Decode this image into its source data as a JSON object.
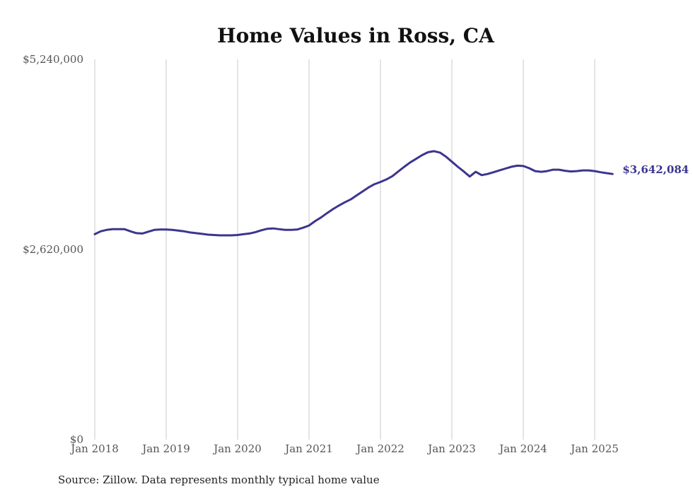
{
  "chart_data": {
    "type": "line",
    "title": "Home Values in Ross, CA",
    "source": "Source: Zillow. Data represents monthly typical home value",
    "ylim": [
      0,
      5240000
    ],
    "yticks": [
      {
        "value": 0,
        "label": "$0"
      },
      {
        "value": 2620000,
        "label": "$2,620,000"
      },
      {
        "value": 5240000,
        "label": "$5,240,000"
      }
    ],
    "xticks": [
      {
        "value": "2018-01",
        "label": "Jan 2018"
      },
      {
        "value": "2019-01",
        "label": "Jan 2019"
      },
      {
        "value": "2020-01",
        "label": "Jan 2020"
      },
      {
        "value": "2021-01",
        "label": "Jan 2021"
      },
      {
        "value": "2022-01",
        "label": "Jan 2022"
      },
      {
        "value": "2023-01",
        "label": "Jan 2023"
      },
      {
        "value": "2024-01",
        "label": "Jan 2024"
      },
      {
        "value": "2025-01",
        "label": "Jan 2025"
      }
    ],
    "grid_x": true,
    "grid_y": false,
    "line_color": "#3b3590",
    "end_label": "$3,642,084",
    "series": [
      {
        "x": [
          "2018-01",
          "2018-02",
          "2018-03",
          "2018-04",
          "2018-05",
          "2018-06",
          "2018-07",
          "2018-08",
          "2018-09",
          "2018-10",
          "2018-11",
          "2018-12",
          "2019-01",
          "2019-02",
          "2019-03",
          "2019-04",
          "2019-05",
          "2019-06",
          "2019-07",
          "2019-08",
          "2019-09",
          "2019-10",
          "2019-11",
          "2019-12",
          "2020-01",
          "2020-02",
          "2020-03",
          "2020-04",
          "2020-05",
          "2020-06",
          "2020-07",
          "2020-08",
          "2020-09",
          "2020-10",
          "2020-11",
          "2020-12",
          "2021-01",
          "2021-02",
          "2021-03",
          "2021-04",
          "2021-05",
          "2021-06",
          "2021-07",
          "2021-08",
          "2021-09",
          "2021-10",
          "2021-11",
          "2021-12",
          "2022-01",
          "2022-02",
          "2022-03",
          "2022-04",
          "2022-05",
          "2022-06",
          "2022-07",
          "2022-08",
          "2022-09",
          "2022-10",
          "2022-11",
          "2022-12",
          "2023-01",
          "2023-02",
          "2023-03",
          "2023-04",
          "2023-05",
          "2023-06",
          "2023-07",
          "2023-08",
          "2023-09",
          "2023-10",
          "2023-11",
          "2023-12",
          "2024-01",
          "2024-02",
          "2024-03",
          "2024-04",
          "2024-05",
          "2024-06",
          "2024-07",
          "2024-08",
          "2024-09",
          "2024-10",
          "2024-11",
          "2024-12",
          "2025-01",
          "2025-02",
          "2025-03",
          "2025-04"
        ],
        "values": [
          2830000,
          2870000,
          2890000,
          2900000,
          2900000,
          2900000,
          2870000,
          2845000,
          2840000,
          2865000,
          2890000,
          2895000,
          2895000,
          2890000,
          2880000,
          2870000,
          2855000,
          2845000,
          2835000,
          2825000,
          2820000,
          2815000,
          2815000,
          2815000,
          2820000,
          2830000,
          2840000,
          2860000,
          2885000,
          2905000,
          2910000,
          2900000,
          2890000,
          2890000,
          2895000,
          2920000,
          2950000,
          3010000,
          3060000,
          3120000,
          3175000,
          3225000,
          3270000,
          3310000,
          3365000,
          3420000,
          3475000,
          3520000,
          3550000,
          3585000,
          3630000,
          3695000,
          3760000,
          3820000,
          3870000,
          3920000,
          3960000,
          3975000,
          3955000,
          3900000,
          3830000,
          3760000,
          3695000,
          3625000,
          3690000,
          3645000,
          3660000,
          3685000,
          3710000,
          3735000,
          3760000,
          3775000,
          3770000,
          3740000,
          3700000,
          3690000,
          3700000,
          3720000,
          3720000,
          3705000,
          3695000,
          3700000,
          3710000,
          3710000,
          3700000,
          3685000,
          3672000,
          3660000
        ]
      }
    ]
  }
}
